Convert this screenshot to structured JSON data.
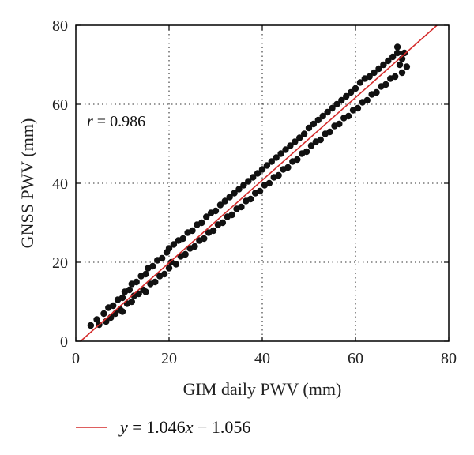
{
  "chart_data": {
    "type": "scatter",
    "xlabel": "GIM daily PWV (mm)",
    "ylabel": "GNSS PWV (mm)",
    "xlim": [
      0,
      80
    ],
    "ylim": [
      0,
      80
    ],
    "xticks": [
      "0",
      "20",
      "40",
      "60",
      "80"
    ],
    "yticks": [
      "0",
      "20",
      "40",
      "60",
      "80"
    ],
    "grid": "dotted",
    "annotation": {
      "r_symbol": "r",
      "r_text": " = 0.986"
    },
    "fit_line": {
      "slope": 1.046,
      "intercept": -1.056,
      "color": "#d42a2a",
      "legend": {
        "y_symbol": "y",
        "eq_mid": " = 1.046",
        "x_symbol": "x",
        "eq_end": " − 1.056"
      }
    },
    "point_color": "#111111",
    "points": [
      [
        3.2,
        4.0
      ],
      [
        4.5,
        5.5
      ],
      [
        5.0,
        4.2
      ],
      [
        6.0,
        7.0
      ],
      [
        6.5,
        5.0
      ],
      [
        7.0,
        8.5
      ],
      [
        7.5,
        6.0
      ],
      [
        8.0,
        9.0
      ],
      [
        8.5,
        7.0
      ],
      [
        9.0,
        10.5
      ],
      [
        9.5,
        8.0
      ],
      [
        10.0,
        11.0
      ],
      [
        10.0,
        7.5
      ],
      [
        10.5,
        12.5
      ],
      [
        11.0,
        9.5
      ],
      [
        11.5,
        13.0
      ],
      [
        12.0,
        10.0
      ],
      [
        12.0,
        14.5
      ],
      [
        12.5,
        11.5
      ],
      [
        13.0,
        15.0
      ],
      [
        13.5,
        12.0
      ],
      [
        14.0,
        16.5
      ],
      [
        14.5,
        13.0
      ],
      [
        15.0,
        17.0
      ],
      [
        15.0,
        12.5
      ],
      [
        15.5,
        18.5
      ],
      [
        16.0,
        14.5
      ],
      [
        16.5,
        19.0
      ],
      [
        17.0,
        15.0
      ],
      [
        17.5,
        20.5
      ],
      [
        18.0,
        16.5
      ],
      [
        18.5,
        21.0
      ],
      [
        19.0,
        17.0
      ],
      [
        19.5,
        22.5
      ],
      [
        20.0,
        18.5
      ],
      [
        20.0,
        23.5
      ],
      [
        20.5,
        20.0
      ],
      [
        21.0,
        24.5
      ],
      [
        21.5,
        19.5
      ],
      [
        22.0,
        25.5
      ],
      [
        22.5,
        21.5
      ],
      [
        23.0,
        26.0
      ],
      [
        23.5,
        22.0
      ],
      [
        24.0,
        27.5
      ],
      [
        24.5,
        23.5
      ],
      [
        25.0,
        28.0
      ],
      [
        25.5,
        24.0
      ],
      [
        26.0,
        29.5
      ],
      [
        26.5,
        25.5
      ],
      [
        27.0,
        30.0
      ],
      [
        27.5,
        26.0
      ],
      [
        28.0,
        31.5
      ],
      [
        28.5,
        27.5
      ],
      [
        29.0,
        32.5
      ],
      [
        29.5,
        28.0
      ],
      [
        30.0,
        33.0
      ],
      [
        30.5,
        29.5
      ],
      [
        31.0,
        34.5
      ],
      [
        31.5,
        30.0
      ],
      [
        32.0,
        35.5
      ],
      [
        32.5,
        31.5
      ],
      [
        33.0,
        36.5
      ],
      [
        33.5,
        32.0
      ],
      [
        34.0,
        37.5
      ],
      [
        34.5,
        33.5
      ],
      [
        35.0,
        38.5
      ],
      [
        35.5,
        34.0
      ],
      [
        36.0,
        39.5
      ],
      [
        36.5,
        35.5
      ],
      [
        37.0,
        40.5
      ],
      [
        37.5,
        36.0
      ],
      [
        38.0,
        41.5
      ],
      [
        38.5,
        37.5
      ],
      [
        39.0,
        42.5
      ],
      [
        39.5,
        38.0
      ],
      [
        40.0,
        43.5
      ],
      [
        40.5,
        39.5
      ],
      [
        41.0,
        44.5
      ],
      [
        41.5,
        40.0
      ],
      [
        42.0,
        45.5
      ],
      [
        42.5,
        41.5
      ],
      [
        43.0,
        46.5
      ],
      [
        43.5,
        42.0
      ],
      [
        44.0,
        47.5
      ],
      [
        44.5,
        43.5
      ],
      [
        45.0,
        48.5
      ],
      [
        45.5,
        44.0
      ],
      [
        46.0,
        49.5
      ],
      [
        46.5,
        45.5
      ],
      [
        47.0,
        50.5
      ],
      [
        47.5,
        46.0
      ],
      [
        48.0,
        51.5
      ],
      [
        48.5,
        47.5
      ],
      [
        49.0,
        52.5
      ],
      [
        49.5,
        48.0
      ],
      [
        50.0,
        54.0
      ],
      [
        50.5,
        49.5
      ],
      [
        51.0,
        55.0
      ],
      [
        51.5,
        50.5
      ],
      [
        52.0,
        56.0
      ],
      [
        52.5,
        51.0
      ],
      [
        53.0,
        57.0
      ],
      [
        53.5,
        52.5
      ],
      [
        54.0,
        58.0
      ],
      [
        54.5,
        53.0
      ],
      [
        55.0,
        59.0
      ],
      [
        55.5,
        54.5
      ],
      [
        56.0,
        60.0
      ],
      [
        56.5,
        55.0
      ],
      [
        57.0,
        61.0
      ],
      [
        57.5,
        56.5
      ],
      [
        58.0,
        62.0
      ],
      [
        58.5,
        57.0
      ],
      [
        59.0,
        63.0
      ],
      [
        59.5,
        58.5
      ],
      [
        60.0,
        64.0
      ],
      [
        60.5,
        59.0
      ],
      [
        61.0,
        65.5
      ],
      [
        61.5,
        60.5
      ],
      [
        62.0,
        66.5
      ],
      [
        62.5,
        61.0
      ],
      [
        63.0,
        67.0
      ],
      [
        63.5,
        62.5
      ],
      [
        64.0,
        68.0
      ],
      [
        64.5,
        63.0
      ],
      [
        65.0,
        69.0
      ],
      [
        65.5,
        64.5
      ],
      [
        66.0,
        70.0
      ],
      [
        66.5,
        65.0
      ],
      [
        67.0,
        71.0
      ],
      [
        67.5,
        66.5
      ],
      [
        68.0,
        72.0
      ],
      [
        68.5,
        67.0
      ],
      [
        69.0,
        73.0
      ],
      [
        69.5,
        70.0
      ],
      [
        70.0,
        71.5
      ],
      [
        70.0,
        68.0
      ],
      [
        69.0,
        74.5
      ],
      [
        70.5,
        73.0
      ],
      [
        71.0,
        69.5
      ]
    ]
  }
}
